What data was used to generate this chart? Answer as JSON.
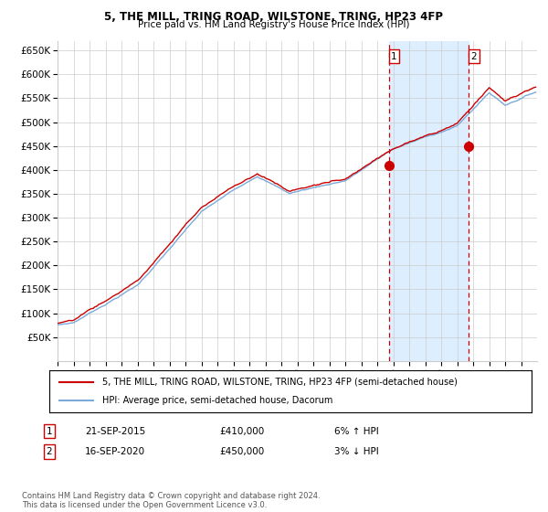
{
  "title1": "5, THE MILL, TRING ROAD, WILSTONE, TRING, HP23 4FP",
  "title2": "Price paid vs. HM Land Registry's House Price Index (HPI)",
  "ylim": [
    0,
    670000
  ],
  "yticks": [
    50000,
    100000,
    150000,
    200000,
    250000,
    300000,
    350000,
    400000,
    450000,
    500000,
    550000,
    600000,
    650000
  ],
  "ytick_labels": [
    "£50K",
    "£100K",
    "£150K",
    "£200K",
    "£250K",
    "£300K",
    "£350K",
    "£400K",
    "£450K",
    "£500K",
    "£550K",
    "£600K",
    "£650K"
  ],
  "xlim_start": 1995.0,
  "xlim_end": 2025.0,
  "marker1_x": 2015.72,
  "marker1_y": 410000,
  "marker2_x": 2020.71,
  "marker2_y": 450000,
  "vline1_x": 2015.72,
  "vline2_x": 2020.71,
  "shade_x1": 2015.72,
  "shade_x2": 2020.71,
  "legend_line1": "5, THE MILL, TRING ROAD, WILSTONE, TRING, HP23 4FP (semi-detached house)",
  "legend_line2": "HPI: Average price, semi-detached house, Dacorum",
  "annotation1_label": "1",
  "annotation1_date": "21-SEP-2015",
  "annotation1_price": "£410,000",
  "annotation1_hpi": "6% ↑ HPI",
  "annotation2_label": "2",
  "annotation2_date": "16-SEP-2020",
  "annotation2_price": "£450,000",
  "annotation2_hpi": "3% ↓ HPI",
  "footer": "Contains HM Land Registry data © Crown copyright and database right 2024.\nThis data is licensed under the Open Government Licence v3.0.",
  "line1_color": "#cc0000",
  "line2_color": "#7aabdb",
  "shade_color": "#ddeeff",
  "marker_color": "#cc0000",
  "vline_color": "#cc0000",
  "box_color": "#cc0000",
  "bg_color": "#ffffff",
  "grid_color": "#cccccc"
}
